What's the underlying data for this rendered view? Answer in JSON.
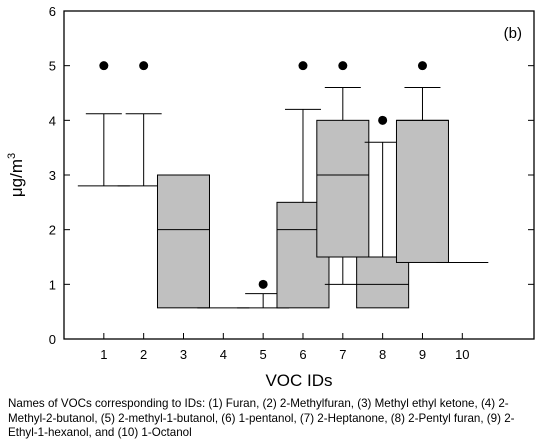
{
  "chart_data": {
    "type": "box",
    "panel_label": "(b)",
    "xlabel": "VOC IDs",
    "ylabel": "μg/m",
    "ylabel_superscript": "3",
    "ylim": [
      0,
      6
    ],
    "yticks": [
      "0",
      "1",
      "2",
      "3",
      "4",
      "5",
      "6"
    ],
    "grid": false,
    "categories": [
      "1",
      "2",
      "3",
      "4",
      "5",
      "6",
      "7",
      "8",
      "9",
      "10"
    ],
    "boxes": [
      {
        "id": "1",
        "q1": 2.8,
        "median": 2.8,
        "q3": 2.8,
        "whisker_low": 2.8,
        "whisker_high": 4.12,
        "outliers": [
          5.0
        ]
      },
      {
        "id": "2",
        "q1": 2.8,
        "median": 2.8,
        "q3": 2.8,
        "whisker_low": 2.8,
        "whisker_high": 4.12,
        "outliers": [
          5.0
        ]
      },
      {
        "id": "3",
        "q1": 0.57,
        "median": 2.0,
        "q3": 3.0,
        "whisker_low": 0.57,
        "whisker_high": 3.0,
        "outliers": []
      },
      {
        "id": "4",
        "q1": 0.57,
        "median": 0.57,
        "q3": 0.57,
        "whisker_low": 0.57,
        "whisker_high": 0.57,
        "outliers": []
      },
      {
        "id": "5",
        "q1": 0.57,
        "median": 0.57,
        "q3": 0.57,
        "whisker_low": 0.57,
        "whisker_high": 0.83,
        "outliers": [
          1.0
        ]
      },
      {
        "id": "6",
        "q1": 0.57,
        "median": 2.0,
        "q3": 2.5,
        "whisker_low": 0.57,
        "whisker_high": 4.2,
        "outliers": [
          5.0
        ]
      },
      {
        "id": "7",
        "q1": 1.5,
        "median": 3.0,
        "q3": 4.0,
        "whisker_low": 1.0,
        "whisker_high": 4.6,
        "outliers": [
          5.0
        ]
      },
      {
        "id": "8",
        "q1": 0.57,
        "median": 1.0,
        "q3": 1.5,
        "whisker_low": 0.57,
        "whisker_high": 3.6,
        "outliers": [
          4.0
        ]
      },
      {
        "id": "9",
        "q1": 1.4,
        "median": 4.0,
        "q3": 4.0,
        "whisker_low": 1.4,
        "whisker_high": 4.6,
        "outliers": [
          5.0
        ]
      },
      {
        "id": "10",
        "q1": 1.4,
        "median": 1.4,
        "q3": 1.4,
        "whisker_low": 1.4,
        "whisker_high": 1.4,
        "outliers": []
      }
    ],
    "box_fill": "#c0c0c0"
  },
  "caption": "Names of VOCs corresponding to IDs: (1) Furan, (2) 2-Methylfuran, (3) Methyl ethyl ketone, (4) 2-Methyl-2-butanol, (5) 2-methyl-1-butanol, (6) 1-pentanol, (7) 2-Heptanone, (8) 2-Pentyl furan, (9) 2-Ethyl-1-hexanol, and (10) 1-Octanol"
}
